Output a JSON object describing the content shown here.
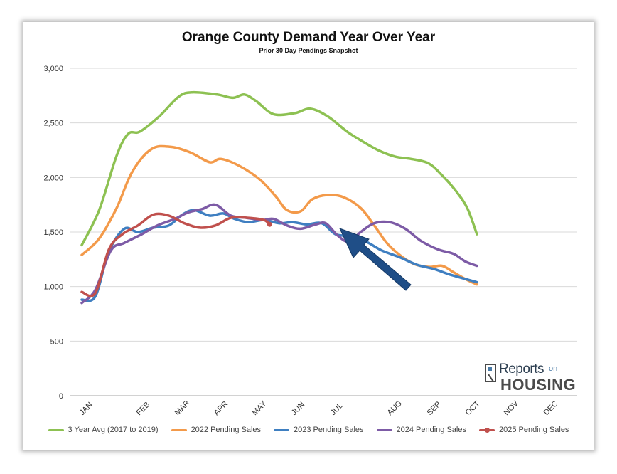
{
  "chart_data": {
    "type": "line",
    "title": "Orange County Demand Year Over Year",
    "subtitle": "Prior 30 Day Pendings Snapshot",
    "xlabel": "",
    "ylabel": "",
    "categories": [
      "JAN",
      "FEB",
      "MAR",
      "APR",
      "MAY",
      "JUN",
      "JUL",
      "AUG",
      "SEP",
      "OCT",
      "NOV",
      "DEC"
    ],
    "y_ticks": [
      "3,000",
      "2,500",
      "2,000",
      "1,500",
      "1,000",
      "500",
      "0"
    ],
    "ylim": [
      0,
      3000
    ],
    "grid": "horizontal",
    "legend_position": "bottom",
    "series": [
      {
        "name": "3 Year Avg (2017 to 2019)",
        "color": "#8DC152",
        "points": [
          [
            0.0,
            1380
          ],
          [
            0.45,
            1700
          ],
          [
            0.9,
            2200
          ],
          [
            1.2,
            2400
          ],
          [
            1.5,
            2420
          ],
          [
            2.0,
            2560
          ],
          [
            2.5,
            2740
          ],
          [
            2.85,
            2780
          ],
          [
            3.5,
            2760
          ],
          [
            3.9,
            2730
          ],
          [
            4.2,
            2760
          ],
          [
            4.5,
            2700
          ],
          [
            4.95,
            2580
          ],
          [
            5.5,
            2590
          ],
          [
            5.9,
            2630
          ],
          [
            6.35,
            2560
          ],
          [
            6.85,
            2420
          ],
          [
            7.25,
            2330
          ],
          [
            7.65,
            2250
          ],
          [
            8.1,
            2190
          ],
          [
            8.5,
            2170
          ],
          [
            8.95,
            2130
          ],
          [
            9.3,
            2020
          ],
          [
            9.65,
            1880
          ],
          [
            9.95,
            1720
          ],
          [
            10.2,
            1480
          ]
        ]
      },
      {
        "name": "2022 Pending Sales",
        "color": "#F39A4A",
        "points": [
          [
            0.0,
            1290
          ],
          [
            0.45,
            1440
          ],
          [
            0.9,
            1720
          ],
          [
            1.3,
            2050
          ],
          [
            1.8,
            2260
          ],
          [
            2.3,
            2280
          ],
          [
            2.8,
            2230
          ],
          [
            3.3,
            2140
          ],
          [
            3.6,
            2170
          ],
          [
            4.1,
            2100
          ],
          [
            4.6,
            1980
          ],
          [
            5.0,
            1830
          ],
          [
            5.3,
            1700
          ],
          [
            5.65,
            1690
          ],
          [
            5.95,
            1800
          ],
          [
            6.35,
            1840
          ],
          [
            6.75,
            1820
          ],
          [
            7.2,
            1720
          ],
          [
            7.55,
            1560
          ],
          [
            7.95,
            1370
          ],
          [
            8.5,
            1220
          ],
          [
            8.95,
            1180
          ],
          [
            9.3,
            1190
          ],
          [
            9.6,
            1130
          ],
          [
            9.95,
            1060
          ],
          [
            10.2,
            1020
          ]
        ]
      },
      {
        "name": "2023 Pending Sales",
        "color": "#3F7FC1",
        "points": [
          [
            0.0,
            880
          ],
          [
            0.35,
            910
          ],
          [
            0.7,
            1320
          ],
          [
            1.1,
            1530
          ],
          [
            1.45,
            1500
          ],
          [
            1.85,
            1540
          ],
          [
            2.25,
            1560
          ],
          [
            2.6,
            1660
          ],
          [
            2.9,
            1700
          ],
          [
            3.3,
            1650
          ],
          [
            3.65,
            1670
          ],
          [
            3.95,
            1620
          ],
          [
            4.3,
            1590
          ],
          [
            4.7,
            1610
          ],
          [
            5.1,
            1580
          ],
          [
            5.45,
            1590
          ],
          [
            5.8,
            1570
          ],
          [
            6.2,
            1580
          ],
          [
            6.55,
            1480
          ],
          [
            6.95,
            1460
          ],
          [
            7.35,
            1410
          ],
          [
            7.75,
            1330
          ],
          [
            8.2,
            1270
          ],
          [
            8.65,
            1200
          ],
          [
            9.1,
            1160
          ],
          [
            9.5,
            1110
          ],
          [
            10.2,
            1040
          ]
        ]
      },
      {
        "name": "2024 Pending Sales",
        "color": "#7D5BA6",
        "points": [
          [
            0.0,
            850
          ],
          [
            0.35,
            970
          ],
          [
            0.75,
            1330
          ],
          [
            1.1,
            1400
          ],
          [
            1.55,
            1480
          ],
          [
            1.95,
            1560
          ],
          [
            2.4,
            1620
          ],
          [
            2.75,
            1680
          ],
          [
            3.1,
            1710
          ],
          [
            3.45,
            1750
          ],
          [
            3.85,
            1650
          ],
          [
            4.25,
            1630
          ],
          [
            4.65,
            1610
          ],
          [
            4.95,
            1620
          ],
          [
            5.3,
            1560
          ],
          [
            5.65,
            1530
          ],
          [
            6.05,
            1570
          ],
          [
            6.3,
            1580
          ],
          [
            6.6,
            1470
          ],
          [
            6.9,
            1410
          ],
          [
            7.2,
            1500
          ],
          [
            7.55,
            1580
          ],
          [
            7.95,
            1590
          ],
          [
            8.35,
            1530
          ],
          [
            8.75,
            1420
          ],
          [
            9.2,
            1340
          ],
          [
            9.6,
            1300
          ],
          [
            9.9,
            1230
          ],
          [
            10.2,
            1190
          ]
        ]
      },
      {
        "name": "2025 Pending Sales",
        "color": "#C0504D",
        "marker_last": true,
        "points": [
          [
            0.0,
            950
          ],
          [
            0.35,
            940
          ],
          [
            0.7,
            1340
          ],
          [
            1.05,
            1480
          ],
          [
            1.45,
            1560
          ],
          [
            1.85,
            1660
          ],
          [
            2.25,
            1650
          ],
          [
            2.65,
            1580
          ],
          [
            3.05,
            1540
          ],
          [
            3.45,
            1560
          ],
          [
            3.85,
            1630
          ],
          [
            4.3,
            1630
          ],
          [
            4.7,
            1610
          ],
          [
            4.85,
            1570
          ]
        ]
      }
    ]
  },
  "logo": {
    "line1": "Reports",
    "line1_suffix": "on",
    "line2": "HOUSING"
  }
}
